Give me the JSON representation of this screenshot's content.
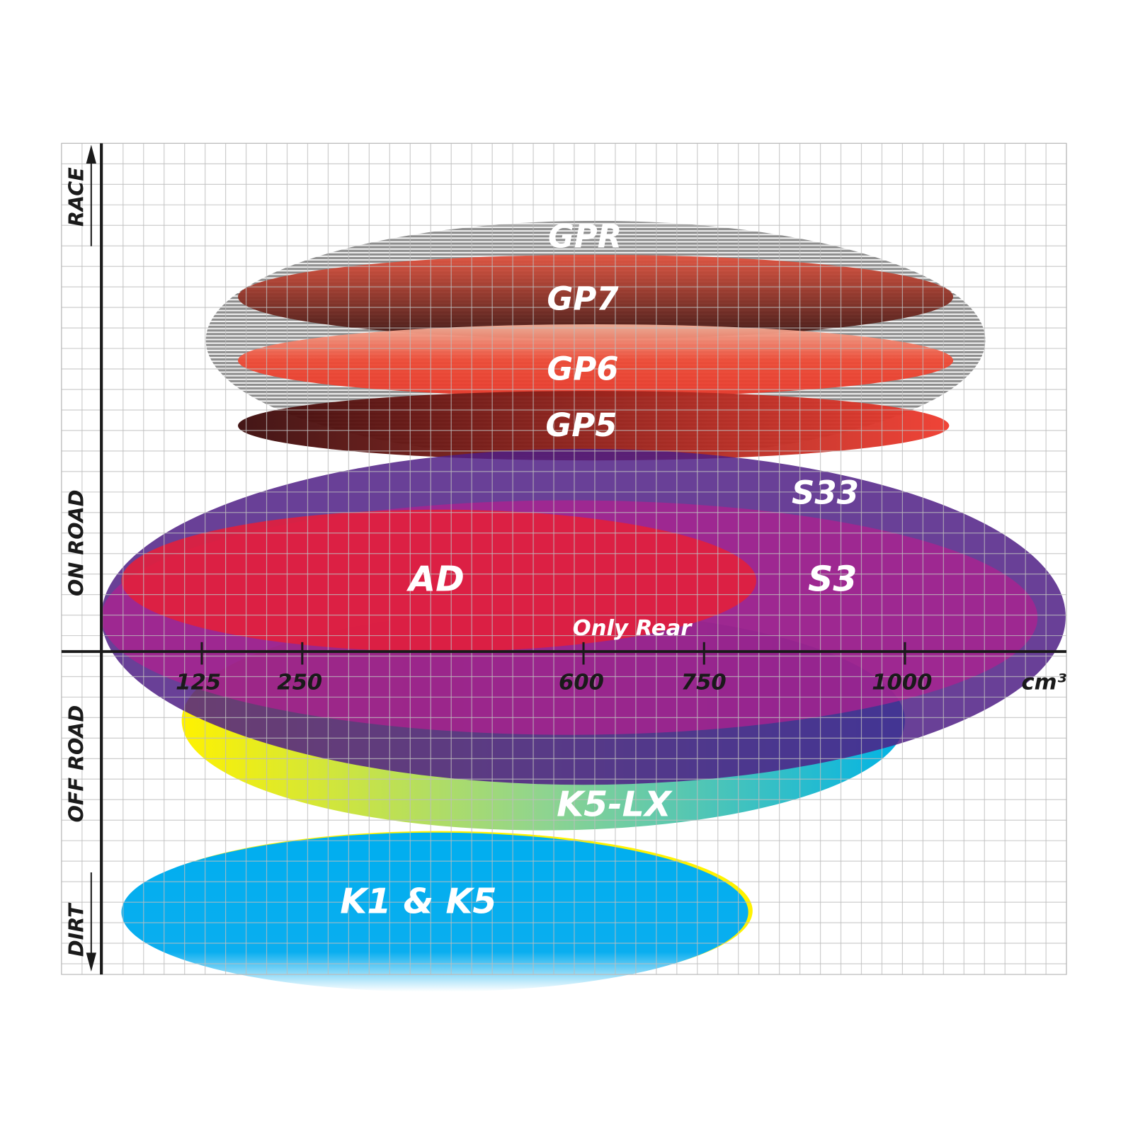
{
  "chart_data": {
    "type": "range-ellipses",
    "xlabel": "cm³",
    "x_ticks": [
      125,
      250,
      600,
      750,
      1000
    ],
    "x_tick_labels": [
      "125",
      "250",
      "600",
      "750",
      "1000"
    ],
    "xlim": [
      0,
      1200
    ],
    "y_categories": [
      "RACE",
      "ON ROAD",
      "OFF ROAD",
      "DIRT"
    ],
    "grid": true,
    "series": [
      {
        "name": "GPR",
        "cc_range": [
          130,
          1100
        ],
        "color": "#9a9a9a"
      },
      {
        "name": "GP7",
        "cc_range": [
          170,
          1060
        ],
        "color": "#8a2a1e"
      },
      {
        "name": "GP6",
        "cc_range": [
          170,
          1060
        ],
        "color": "#ee4a35"
      },
      {
        "name": "GP5",
        "cc_range": [
          170,
          1055
        ],
        "color": "#c0221b"
      },
      {
        "name": "S33",
        "cc_range": [
          0,
          1200
        ],
        "color": "#5e2a8e"
      },
      {
        "name": "S3",
        "cc_range": [
          0,
          1165
        ],
        "color": "#a3228f"
      },
      {
        "name": "AD",
        "cc_range": [
          25,
          815
        ],
        "color": "#dc2140"
      },
      {
        "name": "K5-LX",
        "cc_range": [
          100,
          1000
        ],
        "color": "#25b8e0"
      },
      {
        "name": "K1 & K5",
        "cc_range": [
          25,
          805
        ],
        "color": "#00aeef"
      }
    ],
    "annotations": [
      "Only Rear"
    ]
  }
}
